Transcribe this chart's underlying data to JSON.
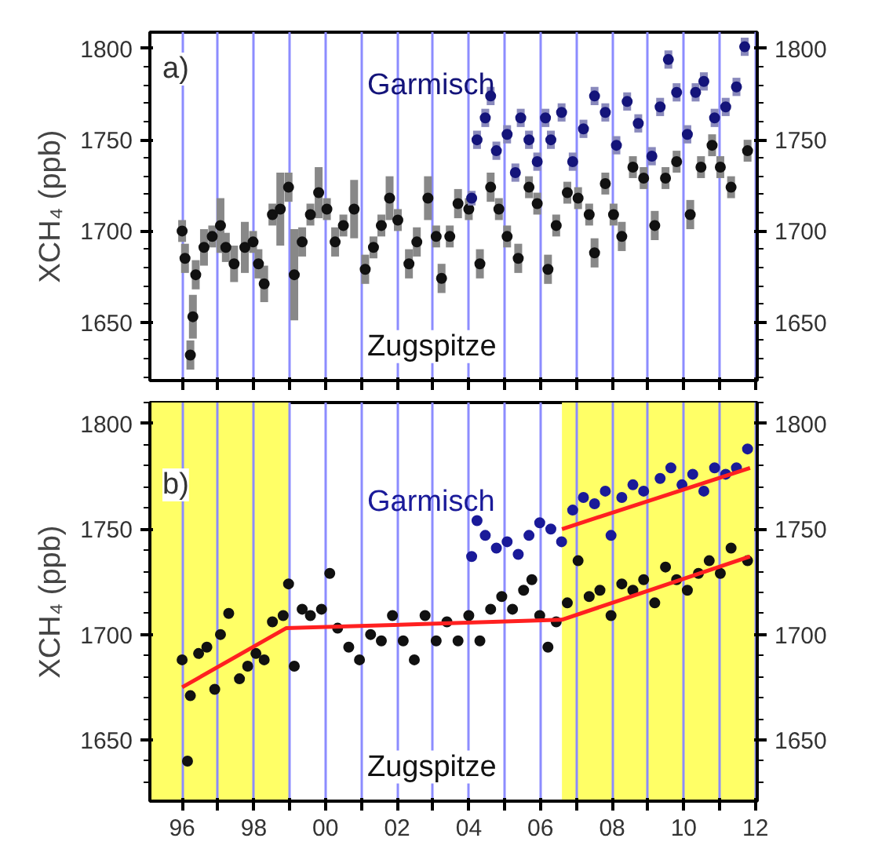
{
  "chart_data": [
    {
      "type": "scatter",
      "annotations": [
        "a)"
      ],
      "ylabel": "XCH₄ (ppb)",
      "xlim": [
        1995.1,
        2012.05
      ],
      "ylim": [
        1618,
        1809
      ],
      "y2lim": [
        1618,
        1809
      ],
      "xticks": [
        1996,
        1997,
        1998,
        1999,
        2000,
        2001,
        2002,
        2003,
        2004,
        2005,
        2006,
        2007,
        2008,
        2009,
        2010,
        2011,
        2012
      ],
      "yticks": [
        1650,
        1700,
        1750,
        1800
      ],
      "y2ticks": [
        1650,
        1700,
        1750,
        1800
      ],
      "tick_labels": "y",
      "grid": "x",
      "marker": "circle",
      "series": [
        {
          "name": "Zugspitze",
          "color": "#111111",
          "x": [
            1996.0,
            1996.08,
            1996.23,
            1996.3,
            1996.38,
            1996.61,
            1996.84,
            1997.07,
            1997.22,
            1997.45,
            1997.75,
            1997.98,
            1998.13,
            1998.29,
            1998.52,
            1998.74,
            1998.97,
            1999.13,
            1999.35,
            1999.58,
            1999.81,
            2000.04,
            2000.27,
            2000.5,
            2000.8,
            2001.11,
            2001.34,
            2001.56,
            2001.79,
            2002.02,
            2002.33,
            2002.55,
            2002.86,
            2003.09,
            2003.24,
            2003.47,
            2003.7,
            2004.0,
            2004.31,
            2004.61,
            2004.84,
            2005.07,
            2005.38,
            2005.68,
            2005.91,
            2006.21,
            2006.44,
            2006.75,
            2007.05,
            2007.36,
            2007.51,
            2007.81,
            2008.04,
            2008.27,
            2008.58,
            2008.88,
            2009.19,
            2009.49,
            2009.8,
            2010.18,
            2010.48,
            2010.79,
            2011.02,
            2011.32,
            2011.78
          ],
          "values": [
            1700,
            1685,
            1632,
            1653,
            1676,
            1691,
            1697,
            1703,
            1691,
            1682,
            1691,
            1694,
            1682,
            1671,
            1709,
            1712,
            1724,
            1676,
            1694,
            1709,
            1721,
            1712,
            1694,
            1703,
            1712,
            1679,
            1691,
            1703,
            1718,
            1706,
            1682,
            1694,
            1718,
            1697,
            1674,
            1697,
            1715,
            1712,
            1682,
            1724,
            1712,
            1697,
            1685,
            1724,
            1715,
            1679,
            1703,
            1721,
            1718,
            1709,
            1688,
            1726,
            1709,
            1697,
            1735,
            1729,
            1703,
            1729,
            1738,
            1709,
            1735,
            1747,
            1735,
            1724,
            1744
          ],
          "errors": [
            6,
            8,
            8,
            12,
            8,
            10,
            6,
            15,
            8,
            10,
            14,
            6,
            8,
            10,
            6,
            20,
            8,
            25,
            8,
            6,
            14,
            6,
            8,
            6,
            16,
            8,
            6,
            6,
            12,
            6,
            8,
            8,
            12,
            6,
            8,
            6,
            8,
            6,
            8,
            8,
            6,
            6,
            8,
            6,
            6,
            8,
            6,
            6,
            6,
            6,
            8,
            6,
            6,
            8,
            6,
            6,
            8,
            6,
            6,
            8,
            6,
            6,
            6,
            6,
            6
          ]
        },
        {
          "name": "Garmisch",
          "color": "#14147a",
          "x": [
            2004.08,
            2004.23,
            2004.46,
            2004.61,
            2004.77,
            2005.07,
            2005.3,
            2005.45,
            2005.68,
            2005.91,
            2006.14,
            2006.29,
            2006.59,
            2006.9,
            2007.2,
            2007.51,
            2007.81,
            2008.12,
            2008.42,
            2008.73,
            2009.11,
            2009.34,
            2009.57,
            2009.8,
            2010.1,
            2010.33,
            2010.56,
            2010.86,
            2011.17,
            2011.47,
            2011.7
          ],
          "values": [
            1718,
            1750,
            1762,
            1774,
            1744,
            1753,
            1732,
            1762,
            1750,
            1738,
            1762,
            1750,
            1765,
            1738,
            1756,
            1774,
            1765,
            1747,
            1771,
            1759,
            1741,
            1768,
            1794,
            1776,
            1753,
            1776,
            1782,
            1762,
            1768,
            1779,
            1801
          ],
          "errors": [
            4,
            5,
            5,
            5,
            5,
            5,
            5,
            5,
            5,
            5,
            5,
            5,
            5,
            5,
            5,
            5,
            5,
            5,
            5,
            5,
            5,
            5,
            5,
            5,
            5,
            5,
            5,
            5,
            5,
            5,
            5
          ]
        }
      ]
    },
    {
      "type": "scatter",
      "annotations": [
        "b)"
      ],
      "ylabel": "XCH₄ (ppb)",
      "xlim": [
        1995.1,
        2012.05
      ],
      "ylim": [
        1621,
        1810
      ],
      "y2lim": [
        1621,
        1810
      ],
      "xticks": [
        {
          "value": 1996,
          "label": "96"
        },
        {
          "value": 1997,
          "label": null
        },
        {
          "value": 1998,
          "label": "98"
        },
        {
          "value": 1999,
          "label": null
        },
        {
          "value": 2000,
          "label": "00"
        },
        {
          "value": 2001,
          "label": null
        },
        {
          "value": 2002,
          "label": "02"
        },
        {
          "value": 2003,
          "label": null
        },
        {
          "value": 2004,
          "label": "04"
        },
        {
          "value": 2005,
          "label": null
        },
        {
          "value": 2006,
          "label": "06"
        },
        {
          "value": 2007,
          "label": null
        },
        {
          "value": 2008,
          "label": "08"
        },
        {
          "value": 2009,
          "label": null
        },
        {
          "value": 2010,
          "label": "10"
        },
        {
          "value": 2011,
          "label": null
        },
        {
          "value": 2012,
          "label": "12"
        }
      ],
      "yticks": [
        1650,
        1700,
        1750,
        1800
      ],
      "y2ticks": [
        1650,
        1700,
        1750,
        1800
      ],
      "grid": "x",
      "marker": "circle",
      "bands": [
        {
          "axis": "x",
          "from": 1995.1,
          "to": 1999.0,
          "color": "#ffff66"
        },
        {
          "axis": "x",
          "from": 2006.6,
          "to": 2012.05,
          "color": "#ffff66"
        }
      ],
      "series": [
        {
          "name": "Zugspitze",
          "color": "#111111",
          "x": [
            1996.0,
            1996.15,
            1996.23,
            1996.46,
            1996.69,
            1996.91,
            1997.07,
            1997.3,
            1997.6,
            1997.83,
            1998.06,
            1998.29,
            1998.52,
            1998.82,
            1998.97,
            1999.13,
            1999.35,
            1999.58,
            1999.89,
            2000.12,
            2000.34,
            2000.65,
            2000.95,
            2001.26,
            2001.56,
            2001.87,
            2002.17,
            2002.48,
            2002.78,
            2003.09,
            2003.39,
            2003.7,
            2004.0,
            2004.31,
            2004.61,
            2004.92,
            2005.22,
            2005.53,
            2005.76,
            2005.98,
            2006.21,
            2006.44,
            2006.75,
            2007.05,
            2007.36,
            2007.66,
            2007.97,
            2008.27,
            2008.58,
            2008.88,
            2009.19,
            2009.49,
            2009.8,
            2010.1,
            2010.41,
            2010.71,
            2011.02,
            2011.32,
            2011.78
          ],
          "values": [
            1688,
            1640,
            1671,
            1691,
            1694,
            1674,
            1700,
            1710,
            1679,
            1685,
            1691,
            1688,
            1706,
            1709,
            1724,
            1685,
            1712,
            1709,
            1712,
            1729,
            1703,
            1694,
            1688,
            1700,
            1697,
            1709,
            1697,
            1688,
            1709,
            1697,
            1706,
            1697,
            1709,
            1697,
            1712,
            1718,
            1712,
            1721,
            1726,
            1709,
            1694,
            1706,
            1715,
            1735,
            1718,
            1721,
            1709,
            1724,
            1721,
            1726,
            1715,
            1732,
            1726,
            1721,
            1729,
            1735,
            1729,
            1741,
            1735
          ]
        },
        {
          "name": "Garmisch",
          "color": "#1a1a99",
          "x": [
            2004.08,
            2004.23,
            2004.46,
            2004.77,
            2005.07,
            2005.38,
            2005.68,
            2005.98,
            2006.29,
            2006.59,
            2006.9,
            2007.2,
            2007.51,
            2007.81,
            2007.97,
            2008.27,
            2008.58,
            2008.88,
            2009.34,
            2009.64,
            2009.95,
            2010.25,
            2010.56,
            2010.86,
            2011.17,
            2011.47,
            2011.78
          ],
          "values": [
            1737,
            1754,
            1747,
            1741,
            1744,
            1738,
            1747,
            1753,
            1750,
            1744,
            1759,
            1765,
            1762,
            1768,
            1747,
            1765,
            1771,
            1768,
            1774,
            1779,
            1771,
            1776,
            1768,
            1779,
            1776,
            1779,
            1788
          ]
        },
        {
          "type": "line",
          "marker": "none",
          "color": "#ff2020",
          "x": [
            1996.0,
            1998.9,
            2006.6,
            2011.85
          ],
          "values": [
            1675,
            1703,
            1707,
            1737
          ]
        },
        {
          "type": "line",
          "marker": "none",
          "color": "#ff2020",
          "x": [
            2006.6,
            2011.85
          ],
          "values": [
            1750,
            1779
          ]
        }
      ]
    }
  ]
}
